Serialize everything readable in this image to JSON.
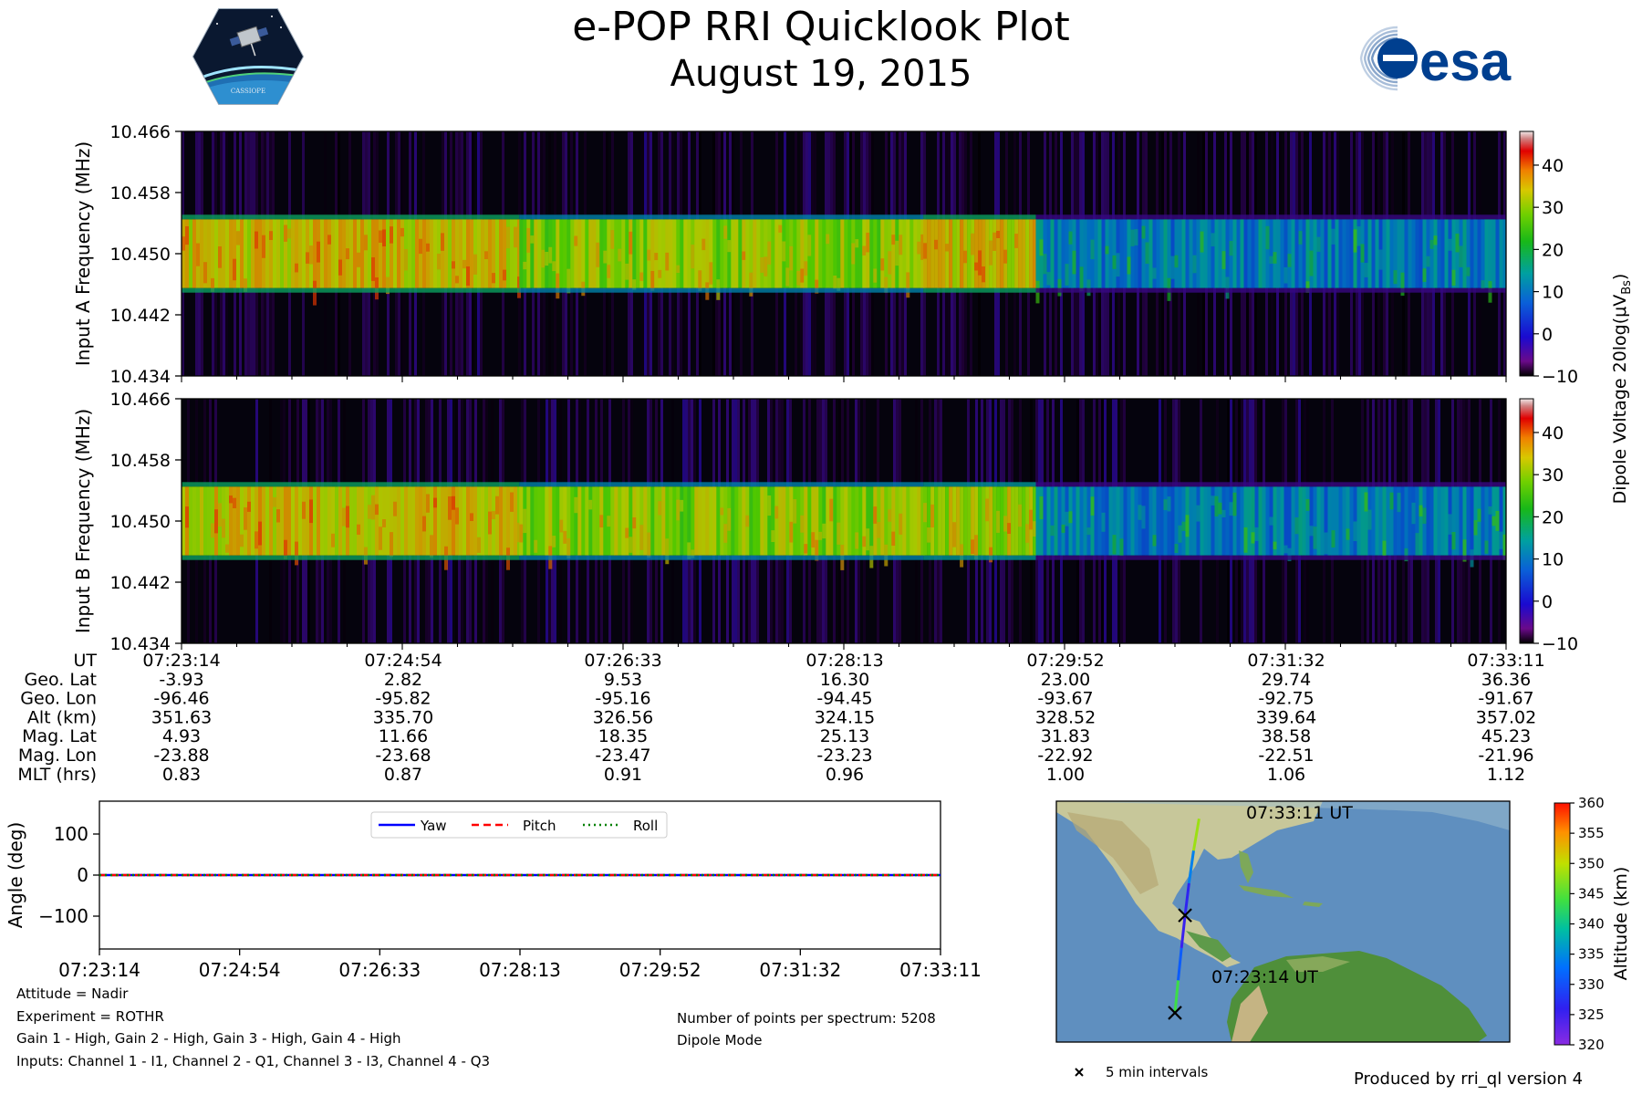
{
  "header": {
    "title": "e-POP RRI Quicklook Plot",
    "date": "August 19, 2015",
    "cassiope_logo_text": "CASSIOPE",
    "esa_logo_text": "esa"
  },
  "colors": {
    "yaw": "#0000ff",
    "pitch": "#ff0000",
    "roll": "#008000",
    "esa_blue": "#003f8f"
  },
  "chart_data": [
    {
      "id": "spectrogram_a",
      "type": "heatmap",
      "ylabel": "Input A Frequency (MHz)",
      "yticks": [
        "10.466",
        "10.458",
        "10.450",
        "10.442",
        "10.434"
      ],
      "ylim": [
        10.434,
        10.466
      ],
      "band_center": 10.45,
      "band_halfwidth": 0.0045,
      "segments": [
        {
          "frac_start": 0.0,
          "frac_end": 0.255,
          "level": 26
        },
        {
          "frac_start": 0.255,
          "frac_end": 0.56,
          "level": 22
        },
        {
          "frac_start": 0.56,
          "frac_end": 0.645,
          "level": 26
        },
        {
          "frac_start": 0.645,
          "frac_end": 1.0,
          "level": 9
        }
      ]
    },
    {
      "id": "spectrogram_b",
      "type": "heatmap",
      "ylabel": "Input B Frequency (MHz)",
      "yticks": [
        "10.466",
        "10.458",
        "10.450",
        "10.442",
        "10.434"
      ],
      "ylim": [
        10.434,
        10.466
      ],
      "band_center": 10.45,
      "band_halfwidth": 0.0045,
      "segments": [
        {
          "frac_start": 0.0,
          "frac_end": 0.255,
          "level": 26
        },
        {
          "frac_start": 0.255,
          "frac_end": 0.56,
          "level": 22
        },
        {
          "frac_start": 0.56,
          "frac_end": 0.645,
          "level": 24
        },
        {
          "frac_start": 0.645,
          "frac_end": 1.0,
          "level": 9
        }
      ]
    },
    {
      "id": "voltage_colorbar",
      "type": "colorbar",
      "label": "Dipole Voltage 20log(μV",
      "label_sub": "Bs",
      "label_end": ")",
      "range": [
        -10,
        48
      ],
      "ticks": [
        "40",
        "30",
        "20",
        "10",
        "0",
        "−10"
      ],
      "tick_values": [
        40,
        30,
        20,
        10,
        0,
        -10
      ]
    },
    {
      "id": "ephemeris_table",
      "type": "table",
      "row_labels": [
        "UT",
        "Geo. Lat",
        "Geo. Lon",
        "Alt (km)",
        "Mag. Lat",
        "Mag. Lon",
        "MLT (hrs)"
      ],
      "columns": [
        [
          "07:23:14",
          "-3.93",
          "-96.46",
          "351.63",
          "4.93",
          "-23.88",
          "0.83"
        ],
        [
          "07:24:54",
          "2.82",
          "-95.82",
          "335.70",
          "11.66",
          "-23.68",
          "0.87"
        ],
        [
          "07:26:33",
          "9.53",
          "-95.16",
          "326.56",
          "18.35",
          "-23.47",
          "0.91"
        ],
        [
          "07:28:13",
          "16.30",
          "-94.45",
          "324.15",
          "25.13",
          "-23.23",
          "0.96"
        ],
        [
          "07:29:52",
          "23.00",
          "-93.67",
          "328.52",
          "31.83",
          "-22.92",
          "1.00"
        ],
        [
          "07:31:32",
          "29.74",
          "-92.75",
          "339.64",
          "38.58",
          "-22.51",
          "1.06"
        ],
        [
          "07:33:11",
          "36.36",
          "-91.67",
          "357.02",
          "45.23",
          "-21.96",
          "1.12"
        ]
      ]
    },
    {
      "id": "attitude_plot",
      "type": "line",
      "ylabel": "Angle (deg)",
      "ylim": [
        -180,
        180
      ],
      "yticks": [
        "100",
        "0",
        "−100"
      ],
      "ytick_values": [
        100,
        0,
        -100
      ],
      "xticks": [
        "07:23:14",
        "07:24:54",
        "07:26:33",
        "07:28:13",
        "07:29:52",
        "07:31:32",
        "07:33:11"
      ],
      "series": [
        {
          "name": "Yaw",
          "values": [
            0,
            0,
            0,
            0,
            0,
            0,
            0
          ]
        },
        {
          "name": "Pitch",
          "values": [
            0,
            0,
            0,
            0,
            0,
            0,
            0
          ]
        },
        {
          "name": "Roll",
          "values": [
            0,
            0,
            0,
            0,
            0,
            0,
            0
          ]
        }
      ]
    },
    {
      "id": "orbit_map",
      "type": "map",
      "start_label": "07:23:14 UT",
      "end_label": "07:33:11 UT",
      "marker_legend": "5 min intervals",
      "track_lat": [
        -3.93,
        2.82,
        9.53,
        16.3,
        23.0,
        29.74,
        36.36
      ],
      "track_lon": [
        -96.46,
        -95.82,
        -95.16,
        -94.45,
        -93.67,
        -92.75,
        -91.67
      ],
      "track_alt": [
        351.63,
        335.7,
        326.56,
        324.15,
        328.52,
        339.64,
        357.02
      ],
      "marker_lat": [
        -3.93,
        16.3
      ]
    },
    {
      "id": "altitude_colorbar",
      "type": "colorbar",
      "label": "Altitude (km)",
      "range": [
        320,
        360
      ],
      "ticks": [
        "360",
        "355",
        "350",
        "345",
        "340",
        "335",
        "330",
        "325",
        "320"
      ],
      "tick_values": [
        360,
        355,
        350,
        345,
        340,
        335,
        330,
        325,
        320
      ]
    }
  ],
  "info_left": [
    "Attitude = Nadir",
    "Experiment = ROTHR",
    "Gain 1 - High, Gain 2 - High, Gain 3 - High, Gain 4 - High",
    "Inputs: Channel 1 - I1, Channel 2 - Q1, Channel 3 - I3, Channel 4 - Q3"
  ],
  "info_right": [
    "Number of points per spectrum: 5208",
    "Dipole Mode"
  ],
  "footer": "Produced by rri_ql version 4"
}
